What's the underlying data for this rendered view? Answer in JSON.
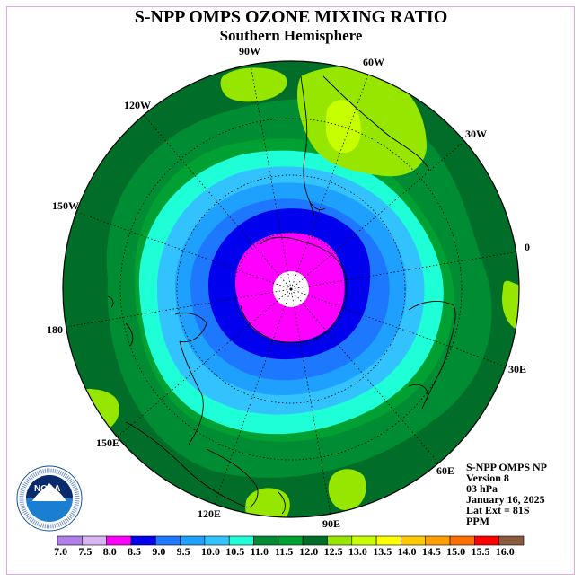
{
  "header": {
    "title": "S-NPP OMPS OZONE MIXING RATIO",
    "subtitle": "Southern Hemisphere"
  },
  "longitude_labels": [
    "90W",
    "60W",
    "30W",
    "0",
    "30E",
    "60E",
    "90E",
    "120E",
    "150E",
    "180",
    "150W",
    "120W"
  ],
  "info": {
    "lines": [
      "S-NPP OMPS NP",
      "Version 8",
      "03 hPa",
      "January 16, 2025",
      "Lat Ext = 81S",
      "PPM"
    ]
  },
  "logo": {
    "text": "NOAA",
    "ring_text": "NATIONAL OCEANIC AND ATMOSPHERIC ADMINISTRATION U.S. DEPARTMENT OF COMMERCE"
  },
  "colorbar": {
    "labels": [
      "7.0",
      "7.5",
      "8.0",
      "8.5",
      "9.0",
      "9.5",
      "10.0",
      "10.5",
      "11.0",
      "11.5",
      "12.0",
      "12.5",
      "13.0",
      "13.5",
      "14.0",
      "14.5",
      "15.0",
      "15.5",
      "16.0"
    ],
    "colors": [
      "#b07ee8",
      "#d7b4f2",
      "#ff00ff",
      "#0000ee",
      "#1e78ff",
      "#1ea0ff",
      "#32c3ff",
      "#1effd7",
      "#008c32",
      "#00a032",
      "#006e28",
      "#96e600",
      "#c8ff00",
      "#ffff00",
      "#ffc800",
      "#ffa000",
      "#ff6e00",
      "#ff0000",
      "#8b5a3c"
    ]
  }
}
